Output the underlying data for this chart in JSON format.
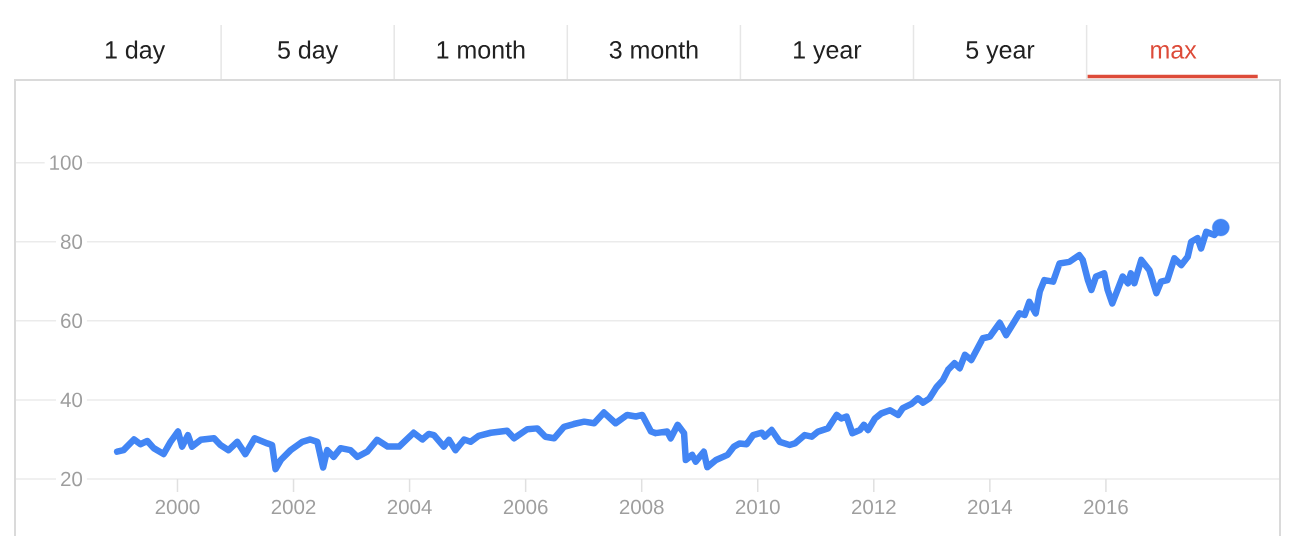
{
  "chart_data": {
    "type": "line",
    "annotations": [
      "1 day",
      "5 day",
      "1 month",
      "3 month",
      "1 year",
      "5 year",
      "max"
    ],
    "series": [
      {
        "color": "#4285f4",
        "x": [
          1998.96,
          1999.07,
          1999.25,
          1999.36,
          1999.48,
          1999.59,
          1999.76,
          1999.88,
          2000.01,
          2000.08,
          2000.18,
          2000.25,
          2000.4,
          2000.63,
          2000.74,
          2000.88,
          2001.03,
          2001.17,
          2001.33,
          2001.55,
          2001.63,
          2001.69,
          2001.78,
          2001.95,
          2002.15,
          2002.29,
          2002.41,
          2002.51,
          2002.58,
          2002.69,
          2002.81,
          2002.98,
          2003.1,
          2003.27,
          2003.44,
          2003.62,
          2003.82,
          2004.07,
          2004.22,
          2004.33,
          2004.42,
          2004.59,
          2004.68,
          2004.79,
          2004.94,
          2005.05,
          2005.19,
          2005.4,
          2005.68,
          2005.8,
          2006.03,
          2006.2,
          2006.34,
          2006.49,
          2006.66,
          2006.83,
          2007.01,
          2007.18,
          2007.35,
          2007.55,
          2007.75,
          2007.9,
          2008.01,
          2008.16,
          2008.24,
          2008.44,
          2008.5,
          2008.62,
          2008.73,
          2008.76,
          2008.87,
          2008.93,
          2009.07,
          2009.13,
          2009.28,
          2009.48,
          2009.59,
          2009.69,
          2009.81,
          2009.92,
          2010.07,
          2010.12,
          2010.24,
          2010.38,
          2010.55,
          2010.64,
          2010.81,
          2010.93,
          2011.04,
          2011.21,
          2011.36,
          2011.44,
          2011.53,
          2011.63,
          2011.76,
          2011.83,
          2011.9,
          2012.02,
          2012.13,
          2012.28,
          2012.42,
          2012.5,
          2012.65,
          2012.76,
          2012.85,
          2012.96,
          2013.08,
          2013.19,
          2013.28,
          2013.39,
          2013.48,
          2013.57,
          2013.68,
          2013.88,
          2014.0,
          2014.17,
          2014.28,
          2014.51,
          2014.6,
          2014.68,
          2014.79,
          2014.86,
          2014.94,
          2015.09,
          2015.2,
          2015.37,
          2015.54,
          2015.6,
          2015.69,
          2015.75,
          2015.83,
          2015.97,
          2016.03,
          2016.11,
          2016.2,
          2016.29,
          2016.38,
          2016.43,
          2016.49,
          2016.61,
          2016.75,
          2016.87,
          2016.95,
          2017.06,
          2017.18,
          2017.3,
          2017.41,
          2017.47,
          2017.58,
          2017.64,
          2017.73,
          2017.87,
          2017.98
        ],
        "values": [
          26.9,
          27.3,
          30.0,
          28.8,
          29.6,
          27.8,
          26.3,
          29.4,
          32.0,
          28.2,
          31.1,
          28.2,
          29.9,
          30.3,
          28.6,
          27.3,
          29.4,
          26.3,
          30.3,
          29.0,
          28.6,
          22.5,
          24.8,
          27.3,
          29.4,
          30.0,
          29.4,
          22.9,
          27.3,
          25.6,
          27.8,
          27.3,
          25.6,
          26.9,
          29.9,
          28.2,
          28.2,
          31.7,
          30.0,
          31.4,
          31.1,
          28.2,
          29.9,
          27.3,
          30.0,
          29.4,
          30.9,
          31.7,
          32.2,
          30.3,
          32.6,
          32.8,
          30.7,
          30.3,
          33.2,
          33.9,
          34.5,
          34.1,
          36.8,
          34.1,
          36.2,
          35.8,
          36.2,
          32.0,
          31.6,
          32.0,
          30.3,
          33.7,
          31.6,
          24.8,
          26.1,
          24.4,
          26.9,
          23.0,
          24.8,
          26.1,
          28.2,
          29.0,
          28.8,
          31.1,
          31.7,
          30.7,
          32.4,
          29.4,
          28.6,
          29.0,
          31.1,
          30.7,
          32.0,
          32.8,
          36.2,
          35.3,
          35.8,
          31.6,
          32.4,
          33.7,
          32.4,
          35.3,
          36.6,
          37.4,
          36.2,
          37.9,
          39.0,
          40.4,
          39.3,
          40.4,
          43.2,
          45.0,
          47.6,
          49.3,
          48.0,
          51.4,
          50.1,
          55.6,
          56.0,
          59.5,
          56.4,
          61.9,
          61.5,
          64.8,
          61.9,
          67.4,
          70.3,
          69.9,
          74.5,
          74.9,
          76.6,
          75.4,
          70.3,
          67.8,
          71.2,
          72.0,
          67.8,
          64.4,
          67.8,
          71.2,
          69.5,
          72.0,
          69.5,
          75.4,
          72.8,
          67.0,
          69.9,
          70.3,
          75.8,
          74.1,
          76.2,
          80.0,
          80.9,
          78.3,
          82.5,
          81.7,
          83.6
        ]
      },
      {
        "type": "scatter",
        "color": "#4285f4",
        "marker": "circle",
        "x": [
          2017.98
        ],
        "values": [
          83.6
        ]
      }
    ],
    "xlim": [
      1997.2,
      2019.0
    ],
    "ylim": [
      20,
      120.9
    ],
    "xticks": [
      2000,
      2002,
      2004,
      2006,
      2008,
      2010,
      2012,
      2014,
      2016
    ],
    "yticks": [
      20,
      40,
      60,
      80,
      100
    ],
    "grid": "y"
  }
}
